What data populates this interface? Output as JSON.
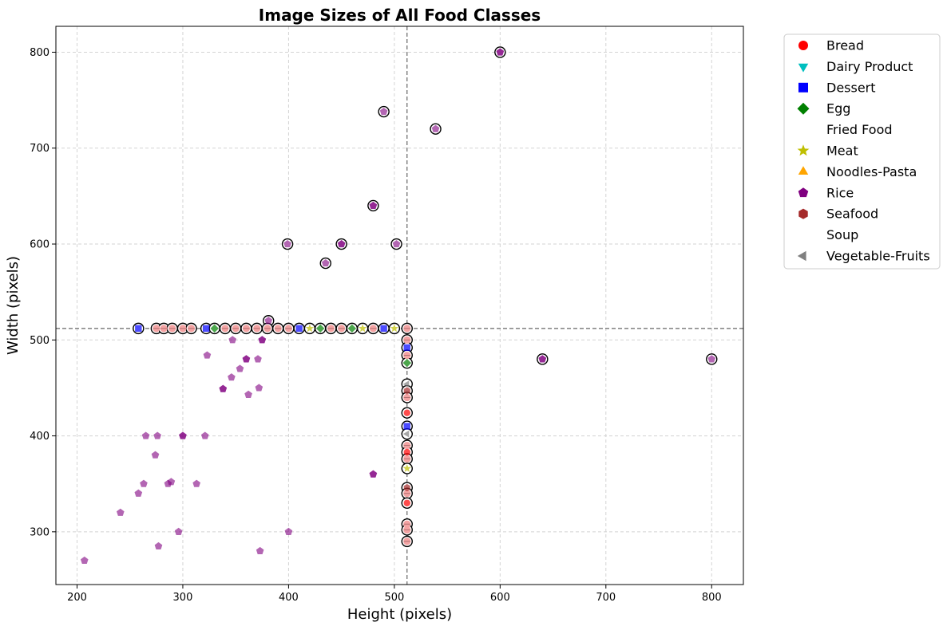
{
  "chart_data": {
    "type": "scatter",
    "title": "Image Sizes of All Food Classes",
    "xlabel": "Height (pixels)",
    "ylabel": "Width (pixels)",
    "xlim": [
      180,
      830
    ],
    "ylim": [
      245,
      827
    ],
    "xticks": [
      200,
      300,
      400,
      500,
      600,
      700,
      800
    ],
    "yticks": [
      300,
      400,
      500,
      600,
      700,
      800
    ],
    "grid": true,
    "legend_position": "outside-top-right",
    "reference_lines": {
      "x": 512,
      "y": 512
    },
    "series": [
      {
        "name": "Bread",
        "color": "#ff0000",
        "marker": "circle"
      },
      {
        "name": "Dairy Product",
        "color": "#00bfbf",
        "marker": "triangle-down"
      },
      {
        "name": "Dessert",
        "color": "#0000ff",
        "marker": "square"
      },
      {
        "name": "Egg",
        "color": "#008000",
        "marker": "diamond"
      },
      {
        "name": "Fried Food",
        "color": "#ffffff",
        "marker": "none"
      },
      {
        "name": "Meat",
        "color": "#bfbf00",
        "marker": "star"
      },
      {
        "name": "Noodles-Pasta",
        "color": "#ffa500",
        "marker": "triangle-up"
      },
      {
        "name": "Rice",
        "color": "#800080",
        "marker": "pentagon"
      },
      {
        "name": "Seafood",
        "color": "#a52a2a",
        "marker": "hexagon"
      },
      {
        "name": "Soup",
        "color": "#ffffff",
        "marker": "none"
      },
      {
        "name": "Vegetable-Fruits",
        "color": "#808080",
        "marker": "triangle-left"
      }
    ],
    "points": {
      "circled": [
        [
          600,
          800
        ],
        [
          490,
          738
        ],
        [
          539,
          720
        ],
        [
          480,
          640
        ],
        [
          399,
          600
        ],
        [
          450,
          600
        ],
        [
          502,
          600
        ],
        [
          435,
          580
        ],
        [
          381,
          520
        ],
        [
          640,
          480
        ],
        [
          800,
          480
        ],
        [
          258,
          512
        ],
        [
          275,
          512
        ],
        [
          282,
          512
        ],
        [
          290,
          512
        ],
        [
          300,
          512
        ],
        [
          308,
          512
        ],
        [
          322,
          512
        ],
        [
          330,
          512
        ],
        [
          340,
          512
        ],
        [
          350,
          512
        ],
        [
          360,
          512
        ],
        [
          370,
          512
        ],
        [
          380,
          512
        ],
        [
          390,
          512
        ],
        [
          400,
          512
        ],
        [
          410,
          512
        ],
        [
          420,
          512
        ],
        [
          430,
          512
        ],
        [
          440,
          512
        ],
        [
          450,
          512
        ],
        [
          460,
          512
        ],
        [
          470,
          512
        ],
        [
          480,
          512
        ],
        [
          490,
          512
        ],
        [
          500,
          512
        ],
        [
          512,
          512
        ],
        [
          512,
          500
        ],
        [
          512,
          492
        ],
        [
          512,
          484
        ],
        [
          512,
          476
        ],
        [
          512,
          454
        ],
        [
          512,
          447
        ],
        [
          512,
          440
        ],
        [
          512,
          424
        ],
        [
          512,
          410
        ],
        [
          512,
          402
        ],
        [
          512,
          390
        ],
        [
          512,
          383
        ],
        [
          512,
          376
        ],
        [
          512,
          366
        ],
        [
          512,
          346
        ],
        [
          512,
          340
        ],
        [
          512,
          330
        ],
        [
          512,
          308
        ],
        [
          512,
          302
        ],
        [
          512,
          290
        ]
      ],
      "Bread": [
        [
          512,
          424
        ],
        [
          512,
          383
        ],
        [
          512,
          330
        ]
      ],
      "Dessert": [
        [
          258,
          512
        ],
        [
          322,
          512
        ],
        [
          410,
          512
        ],
        [
          490,
          512
        ],
        [
          512,
          492
        ],
        [
          512,
          410
        ]
      ],
      "Egg": [
        [
          330,
          512
        ],
        [
          430,
          512
        ],
        [
          460,
          512
        ],
        [
          512,
          476
        ]
      ],
      "Meat": [
        [
          420,
          512
        ],
        [
          470,
          512
        ],
        [
          500,
          512
        ],
        [
          512,
          366
        ]
      ],
      "Seafood": [
        [
          512,
          447
        ],
        [
          512,
          346
        ]
      ],
      "Vegetable-Fruits": [
        [
          512,
          454
        ],
        [
          512,
          402
        ]
      ],
      "Rice": [
        [
          600,
          800
        ],
        [
          490,
          738
        ],
        [
          539,
          720
        ],
        [
          480,
          640
        ],
        [
          399,
          600
        ],
        [
          450,
          600
        ],
        [
          502,
          600
        ],
        [
          435,
          580
        ],
        [
          381,
          520
        ],
        [
          640,
          480
        ],
        [
          800,
          480
        ],
        [
          375,
          500
        ],
        [
          347,
          500
        ],
        [
          323,
          484
        ],
        [
          360,
          480
        ],
        [
          371,
          480
        ],
        [
          346,
          461
        ],
        [
          354,
          470
        ],
        [
          372,
          450
        ],
        [
          338,
          449
        ],
        [
          362,
          443
        ],
        [
          300,
          400
        ],
        [
          265,
          400
        ],
        [
          276,
          400
        ],
        [
          321,
          400
        ],
        [
          274,
          380
        ],
        [
          480,
          360
        ],
        [
          289,
          352
        ],
        [
          286,
          350
        ],
        [
          263,
          350
        ],
        [
          313,
          350
        ],
        [
          258,
          340
        ],
        [
          241,
          320
        ],
        [
          296,
          300
        ],
        [
          400,
          300
        ],
        [
          277,
          285
        ],
        [
          373,
          280
        ],
        [
          207,
          270
        ]
      ],
      "Rice-dark": [
        [
          600,
          800
        ],
        [
          480,
          640
        ],
        [
          450,
          600
        ],
        [
          640,
          480
        ],
        [
          375,
          500
        ],
        [
          360,
          480
        ],
        [
          338,
          449
        ],
        [
          300,
          400
        ],
        [
          480,
          360
        ]
      ],
      "Pink": [
        [
          275,
          512
        ],
        [
          282,
          512
        ],
        [
          290,
          512
        ],
        [
          300,
          512
        ],
        [
          308,
          512
        ],
        [
          340,
          512
        ],
        [
          350,
          512
        ],
        [
          360,
          512
        ],
        [
          370,
          512
        ],
        [
          380,
          512
        ],
        [
          390,
          512
        ],
        [
          400,
          512
        ],
        [
          440,
          512
        ],
        [
          450,
          512
        ],
        [
          480,
          512
        ],
        [
          512,
          512
        ],
        [
          512,
          500
        ],
        [
          512,
          484
        ],
        [
          512,
          440
        ],
        [
          512,
          390
        ],
        [
          512,
          376
        ],
        [
          512,
          340
        ],
        [
          512,
          308
        ],
        [
          512,
          302
        ],
        [
          512,
          290
        ]
      ]
    }
  }
}
